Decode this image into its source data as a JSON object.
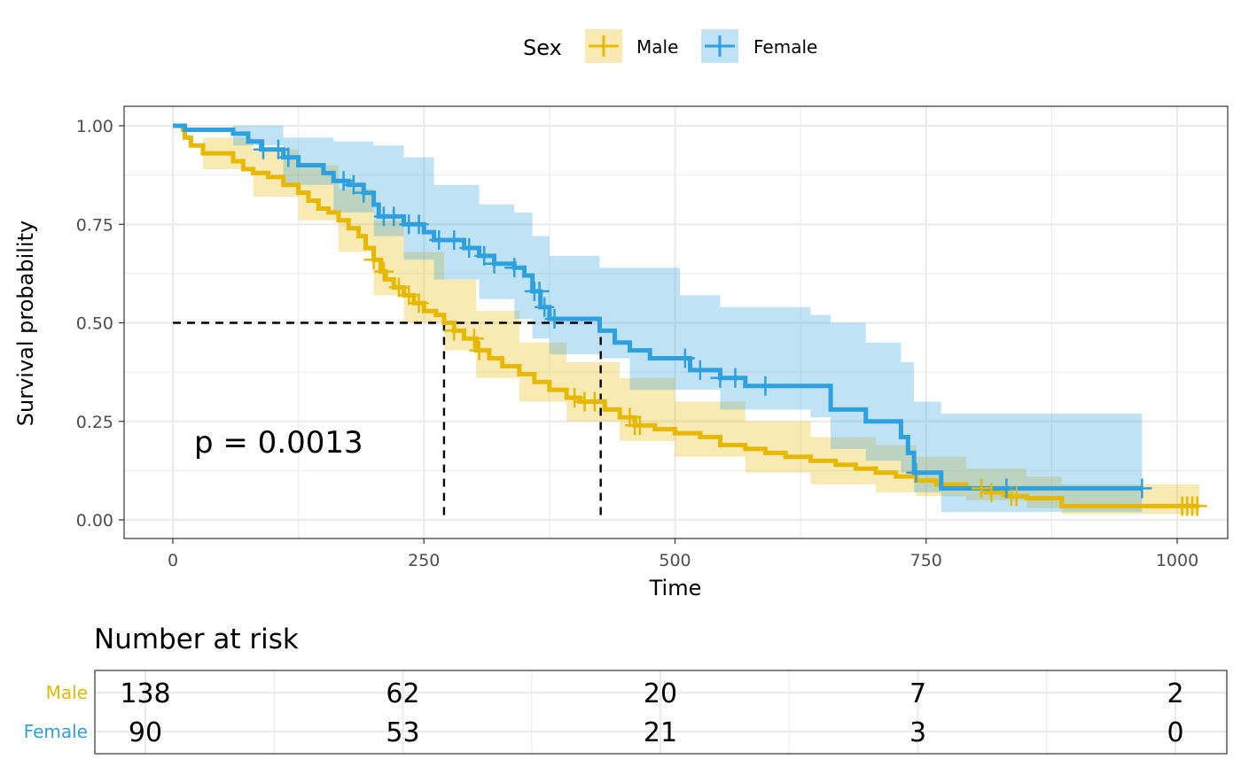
{
  "chart_data": {
    "type": "line",
    "subtype": "kaplan-meier",
    "xlabel": "Time",
    "ylabel": "Survival probability",
    "xlim": [
      0,
      1022
    ],
    "ylim": [
      0,
      1
    ],
    "xticks": [
      0,
      250,
      500,
      750,
      1000
    ],
    "xtick_labels": [
      "0",
      "250",
      "500",
      "750",
      "1000"
    ],
    "yticks": [
      0,
      0.25,
      0.5,
      0.75,
      1
    ],
    "ytick_labels": [
      "0.00",
      "0.25",
      "0.50",
      "0.75",
      "1.00"
    ],
    "grid": true,
    "legend": {
      "title": "Sex",
      "position": "top"
    },
    "annotation": "p = 0.0013",
    "median_line_y": 0.5,
    "series": [
      {
        "name": "Male",
        "color": "#E7B800",
        "step": [
          [
            0,
            1.0
          ],
          [
            10,
            0.99
          ],
          [
            12,
            0.97
          ],
          [
            18,
            0.95
          ],
          [
            30,
            0.93
          ],
          [
            60,
            0.91
          ],
          [
            70,
            0.89
          ],
          [
            80,
            0.88
          ],
          [
            95,
            0.87
          ],
          [
            110,
            0.85
          ],
          [
            125,
            0.83
          ],
          [
            135,
            0.81
          ],
          [
            145,
            0.79
          ],
          [
            155,
            0.78
          ],
          [
            165,
            0.76
          ],
          [
            175,
            0.74
          ],
          [
            185,
            0.72
          ],
          [
            192,
            0.69
          ],
          [
            200,
            0.66
          ],
          [
            207,
            0.63
          ],
          [
            212,
            0.61
          ],
          [
            220,
            0.59
          ],
          [
            230,
            0.57
          ],
          [
            240,
            0.55
          ],
          [
            250,
            0.53
          ],
          [
            262,
            0.52
          ],
          [
            270,
            0.5
          ],
          [
            280,
            0.48
          ],
          [
            290,
            0.46
          ],
          [
            302,
            0.43
          ],
          [
            315,
            0.41
          ],
          [
            328,
            0.39
          ],
          [
            345,
            0.37
          ],
          [
            360,
            0.35
          ],
          [
            375,
            0.33
          ],
          [
            392,
            0.31
          ],
          [
            405,
            0.3
          ],
          [
            430,
            0.28
          ],
          [
            445,
            0.26
          ],
          [
            460,
            0.24
          ],
          [
            480,
            0.23
          ],
          [
            500,
            0.22
          ],
          [
            525,
            0.21
          ],
          [
            545,
            0.19
          ],
          [
            570,
            0.18
          ],
          [
            590,
            0.17
          ],
          [
            610,
            0.16
          ],
          [
            635,
            0.15
          ],
          [
            660,
            0.14
          ],
          [
            680,
            0.13
          ],
          [
            700,
            0.12
          ],
          [
            720,
            0.11
          ],
          [
            740,
            0.1
          ],
          [
            760,
            0.09
          ],
          [
            790,
            0.08
          ],
          [
            810,
            0.07
          ],
          [
            830,
            0.06
          ],
          [
            850,
            0.055
          ],
          [
            885,
            0.035
          ],
          [
            965,
            0.035
          ],
          [
            1022,
            0.035
          ]
        ],
        "ci": [
          [
            0,
            1.0,
            1.0
          ],
          [
            30,
            0.89,
            0.97
          ],
          [
            80,
            0.82,
            0.94
          ],
          [
            125,
            0.76,
            0.9
          ],
          [
            165,
            0.68,
            0.84
          ],
          [
            200,
            0.57,
            0.76
          ],
          [
            230,
            0.5,
            0.68
          ],
          [
            270,
            0.43,
            0.61
          ],
          [
            302,
            0.36,
            0.53
          ],
          [
            345,
            0.3,
            0.45
          ],
          [
            392,
            0.25,
            0.4
          ],
          [
            445,
            0.2,
            0.36
          ],
          [
            500,
            0.16,
            0.3
          ],
          [
            570,
            0.12,
            0.25
          ],
          [
            635,
            0.09,
            0.21
          ],
          [
            700,
            0.07,
            0.19
          ],
          [
            740,
            0.06,
            0.16
          ],
          [
            790,
            0.05,
            0.13
          ],
          [
            850,
            0.03,
            0.11
          ],
          [
            885,
            0.015,
            0.09
          ],
          [
            1022,
            0.015,
            0.09
          ]
        ],
        "censor_x": [
          200,
          210,
          225,
          235,
          245,
          280,
          300,
          305,
          400,
          410,
          420,
          455,
          460,
          465,
          805,
          815,
          835,
          840,
          1005,
          1010,
          1015,
          1020
        ]
      },
      {
        "name": "Female",
        "color": "#2E9FDF",
        "step": [
          [
            0,
            1.0
          ],
          [
            12,
            0.99
          ],
          [
            60,
            0.98
          ],
          [
            75,
            0.96
          ],
          [
            88,
            0.94
          ],
          [
            110,
            0.92
          ],
          [
            125,
            0.9
          ],
          [
            150,
            0.88
          ],
          [
            160,
            0.86
          ],
          [
            175,
            0.85
          ],
          [
            190,
            0.83
          ],
          [
            200,
            0.8
          ],
          [
            205,
            0.77
          ],
          [
            230,
            0.75
          ],
          [
            250,
            0.73
          ],
          [
            260,
            0.71
          ],
          [
            290,
            0.69
          ],
          [
            305,
            0.67
          ],
          [
            320,
            0.65
          ],
          [
            340,
            0.64
          ],
          [
            350,
            0.62
          ],
          [
            358,
            0.58
          ],
          [
            366,
            0.54
          ],
          [
            375,
            0.51
          ],
          [
            405,
            0.51
          ],
          [
            425,
            0.48
          ],
          [
            440,
            0.45
          ],
          [
            455,
            0.43
          ],
          [
            475,
            0.41
          ],
          [
            505,
            0.41
          ],
          [
            515,
            0.38
          ],
          [
            545,
            0.36
          ],
          [
            570,
            0.34
          ],
          [
            590,
            0.34
          ],
          [
            635,
            0.34
          ],
          [
            655,
            0.28
          ],
          [
            690,
            0.25
          ],
          [
            725,
            0.21
          ],
          [
            732,
            0.17
          ],
          [
            738,
            0.12
          ],
          [
            765,
            0.08
          ],
          [
            965,
            0.08
          ]
        ],
        "ci": [
          [
            0,
            1.0,
            1.0
          ],
          [
            60,
            0.95,
            1.0
          ],
          [
            110,
            0.85,
            0.97
          ],
          [
            160,
            0.78,
            0.96
          ],
          [
            200,
            0.72,
            0.95
          ],
          [
            230,
            0.66,
            0.92
          ],
          [
            260,
            0.61,
            0.85
          ],
          [
            305,
            0.56,
            0.8
          ],
          [
            340,
            0.51,
            0.78
          ],
          [
            358,
            0.46,
            0.72
          ],
          [
            375,
            0.42,
            0.67
          ],
          [
            425,
            0.41,
            0.64
          ],
          [
            455,
            0.33,
            0.64
          ],
          [
            505,
            0.33,
            0.57
          ],
          [
            545,
            0.28,
            0.54
          ],
          [
            635,
            0.26,
            0.52
          ],
          [
            655,
            0.18,
            0.5
          ],
          [
            690,
            0.15,
            0.45
          ],
          [
            725,
            0.12,
            0.4
          ],
          [
            738,
            0.07,
            0.3
          ],
          [
            765,
            0.02,
            0.27
          ],
          [
            965,
            0.02,
            0.27
          ]
        ],
        "censor_x": [
          90,
          105,
          115,
          170,
          180,
          190,
          210,
          220,
          235,
          245,
          265,
          280,
          295,
          310,
          320,
          340,
          360,
          365,
          370,
          380,
          510,
          525,
          545,
          560,
          590,
          740,
          830,
          965
        ]
      }
    ],
    "median_survival_x": [
      270,
      426
    ],
    "risk_table": {
      "title": "Number at risk",
      "times": [
        0,
        250,
        500,
        750,
        1000
      ],
      "rows": [
        {
          "name": "Male",
          "color": "#E7B800",
          "counts": [
            "138",
            "62",
            "20",
            "7",
            "2"
          ]
        },
        {
          "name": "Female",
          "color": "#2E9FDF",
          "counts": [
            "90",
            "53",
            "21",
            "3",
            "0"
          ]
        }
      ]
    }
  }
}
